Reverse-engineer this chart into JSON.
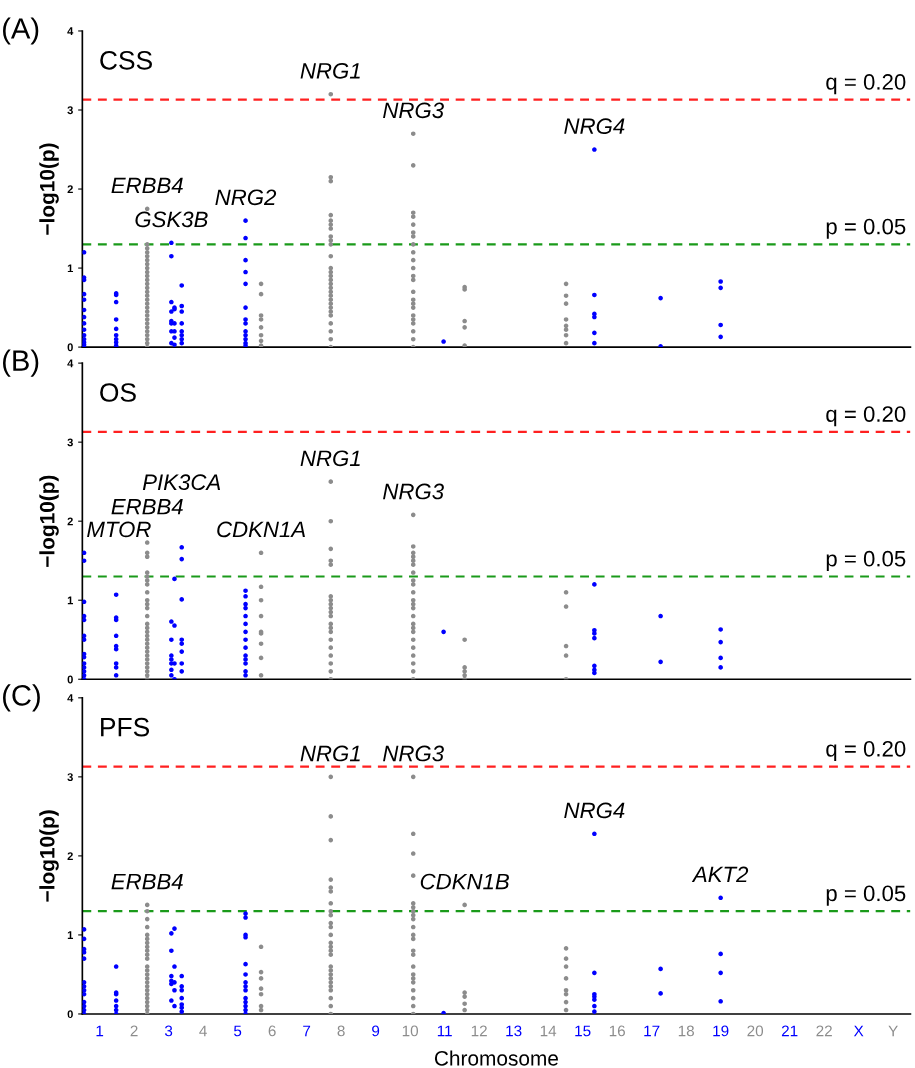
{
  "chart_data": [
    {
      "type": "scatter",
      "title": "(A)",
      "subtitle": "CSS",
      "ylabel": "−log10(p)",
      "xlim": [
        0.5,
        24.5
      ],
      "ylim": [
        0,
        4
      ],
      "yticks": [
        0,
        1,
        2,
        3,
        4
      ],
      "tick_labels": "y",
      "marker": "circle",
      "ref_lines": [
        {
          "axis": "y",
          "value": 3.13,
          "color": "#ff2020",
          "line_style": "dashed"
        },
        {
          "axis": "y",
          "value": 1.3,
          "color": "#1a9a1a",
          "line_style": "dashed"
        }
      ],
      "annotations": [
        {
          "text": "q = 0.20",
          "y": 3.13
        },
        {
          "text": "p = 0.05",
          "y": 1.3
        },
        {
          "text": "ERBB4",
          "x": 2.38,
          "y": 1.75
        },
        {
          "text": "GSK3B",
          "x": 3.08,
          "y": 1.32
        },
        {
          "text": "NRG2",
          "x": 5.23,
          "y": 1.6
        },
        {
          "text": "NRG1",
          "x": 7.7,
          "y": 3.2
        },
        {
          "text": "NRG3",
          "x": 10.09,
          "y": 2.7
        },
        {
          "text": "NRG4",
          "x": 15.34,
          "y": 2.5
        }
      ],
      "series": [
        {
          "color": "#0000ff",
          "x": [
            0.55,
            0.55,
            0.55,
            0.55,
            0.55,
            0.55,
            0.55,
            0.55,
            0.55,
            0.55,
            0.55,
            0.55,
            0.55,
            0.55,
            1.48,
            1.48,
            1.48,
            1.48,
            1.48,
            1.48,
            1.48,
            1.48,
            1.48,
            1.48,
            3.08,
            3.08,
            3.08,
            3.08,
            3.08,
            3.08,
            3.08,
            3.08,
            3.17,
            3.17,
            3.17,
            3.17,
            3.17,
            3.17,
            3.38,
            3.38,
            3.38,
            3.38,
            3.38,
            3.38,
            3.38,
            3.38,
            5.23,
            5.23,
            5.23,
            5.23,
            5.23,
            5.23,
            5.23,
            5.23,
            5.23,
            5.23,
            5.23,
            5.23,
            5.23,
            10.97,
            15.34,
            15.34,
            15.34,
            15.34,
            15.34,
            15.34,
            17.26,
            17.26,
            19.0,
            19.0,
            19.0,
            19.0
          ],
          "values": [
            1.2,
            0.88,
            0.85,
            0.67,
            0.6,
            0.47,
            0.38,
            0.3,
            0.22,
            0.15,
            0.1,
            0.06,
            0.03,
            0.0,
            0.68,
            0.66,
            0.57,
            0.35,
            0.23,
            0.15,
            0.1,
            0.06,
            0.02,
            0.0,
            1.32,
            1.15,
            0.57,
            0.45,
            0.33,
            0.3,
            0.2,
            0.05,
            0.5,
            0.48,
            0.3,
            0.2,
            0.12,
            0.03,
            0.78,
            0.52,
            0.45,
            0.3,
            0.2,
            0.15,
            0.1,
            0.05,
            1.6,
            1.38,
            1.1,
            0.95,
            0.8,
            0.5,
            0.35,
            0.3,
            0.2,
            0.15,
            0.1,
            0.05,
            0.02,
            0.07,
            2.5,
            0.66,
            0.42,
            0.38,
            0.18,
            0.05,
            0.62,
            0.01,
            0.83,
            0.75,
            0.28,
            0.13
          ]
        },
        {
          "color": "#8c8c8c",
          "x": [
            2.38,
            2.38,
            2.38,
            2.38,
            2.38,
            2.38,
            2.38,
            2.38,
            2.38,
            2.38,
            2.38,
            2.38,
            2.38,
            2.38,
            2.38,
            2.38,
            2.38,
            2.38,
            2.38,
            2.38,
            2.38,
            2.38,
            2.38,
            2.38,
            2.38,
            2.38,
            2.38,
            2.38,
            5.68,
            5.68,
            5.68,
            5.68,
            5.68,
            5.68,
            5.68,
            5.68,
            7.7,
            7.7,
            7.7,
            7.7,
            7.7,
            7.7,
            7.7,
            7.7,
            7.7,
            7.7,
            7.7,
            7.7,
            7.7,
            7.7,
            7.7,
            7.7,
            7.7,
            7.7,
            7.7,
            7.7,
            7.7,
            7.7,
            7.7,
            7.7,
            7.7,
            7.7,
            7.7,
            7.7,
            10.09,
            10.09,
            10.09,
            10.09,
            10.09,
            10.09,
            10.09,
            10.09,
            10.09,
            10.09,
            10.09,
            10.09,
            10.09,
            10.09,
            10.09,
            10.09,
            10.09,
            10.09,
            10.09,
            10.09,
            10.09,
            10.09,
            10.09,
            11.58,
            11.58,
            11.58,
            11.58,
            11.58,
            14.52,
            14.52,
            14.52,
            14.52,
            14.52,
            14.52,
            14.52,
            14.52
          ],
          "values": [
            1.75,
            1.3,
            1.25,
            1.2,
            1.15,
            1.1,
            1.05,
            1.0,
            0.95,
            0.9,
            0.85,
            0.8,
            0.75,
            0.7,
            0.65,
            0.6,
            0.55,
            0.5,
            0.45,
            0.4,
            0.35,
            0.3,
            0.25,
            0.2,
            0.15,
            0.1,
            0.05,
            0.0,
            0.8,
            0.67,
            0.4,
            0.35,
            0.25,
            0.15,
            0.08,
            0.02,
            3.2,
            2.15,
            2.1,
            1.67,
            1.6,
            1.55,
            1.5,
            1.4,
            1.35,
            1.3,
            1.15,
            1.0,
            0.95,
            0.9,
            0.85,
            0.8,
            0.75,
            0.7,
            0.65,
            0.6,
            0.55,
            0.5,
            0.45,
            0.4,
            0.3,
            0.2,
            0.1,
            0.0,
            2.7,
            2.3,
            1.7,
            1.65,
            1.55,
            1.45,
            1.4,
            1.3,
            1.2,
            1.1,
            1.0,
            0.9,
            0.85,
            0.7,
            0.6,
            0.55,
            0.5,
            0.4,
            0.35,
            0.3,
            0.2,
            0.1,
            0.0,
            0.76,
            0.73,
            0.33,
            0.25,
            0.02,
            0.8,
            0.65,
            0.55,
            0.35,
            0.27,
            0.22,
            0.15,
            0.05
          ]
        }
      ]
    },
    {
      "type": "scatter",
      "title": "(B)",
      "subtitle": "OS",
      "ylabel": "−log10(p)",
      "xlim": [
        0.5,
        24.5
      ],
      "ylim": [
        0,
        4
      ],
      "yticks": [
        0,
        1,
        2,
        3,
        4
      ],
      "tick_labels": "y",
      "marker": "circle",
      "ref_lines": [
        {
          "axis": "y",
          "value": 3.13,
          "color": "#ff2020",
          "line_style": "dashed"
        },
        {
          "axis": "y",
          "value": 1.3,
          "color": "#1a9a1a",
          "line_style": "dashed"
        }
      ],
      "annotations": [
        {
          "text": "q = 0.20",
          "y": 3.13
        },
        {
          "text": "p = 0.05",
          "y": 1.3
        },
        {
          "text": "MTOR",
          "x": 0.55,
          "y": 1.6
        },
        {
          "text": "ERBB4",
          "x": 2.38,
          "y": 1.73
        },
        {
          "text": "PIK3CA",
          "x": 3.38,
          "y": 1.67
        },
        {
          "text": "CDKN1A",
          "x": 5.68,
          "y": 1.6
        },
        {
          "text": "NRG1",
          "x": 7.7,
          "y": 2.5
        },
        {
          "text": "NRG3",
          "x": 10.09,
          "y": 2.08
        }
      ],
      "series": [
        {
          "color": "#0000ff",
          "x": [
            0.55,
            0.55,
            0.55,
            0.55,
            0.55,
            0.55,
            0.55,
            0.55,
            0.55,
            0.55,
            0.55,
            0.55,
            0.55,
            0.55,
            1.48,
            1.48,
            1.48,
            1.48,
            1.48,
            1.48,
            1.48,
            1.48,
            1.48,
            3.08,
            3.08,
            3.08,
            3.08,
            3.08,
            3.08,
            3.08,
            3.17,
            3.17,
            3.17,
            3.17,
            3.38,
            3.38,
            3.38,
            3.38,
            3.38,
            3.38,
            3.38,
            3.38,
            5.23,
            5.23,
            5.23,
            5.23,
            5.23,
            5.23,
            5.23,
            5.23,
            5.23,
            5.23,
            5.23,
            5.23,
            5.23,
            5.23,
            10.97,
            15.34,
            15.34,
            15.34,
            15.34,
            15.34,
            15.34,
            15.34,
            17.26,
            17.26,
            19.0,
            19.0,
            19.0,
            19.0
          ],
          "values": [
            1.6,
            1.5,
            0.98,
            0.8,
            0.75,
            0.55,
            0.5,
            0.32,
            0.28,
            0.2,
            0.15,
            0.1,
            0.05,
            0.0,
            1.07,
            0.78,
            0.75,
            0.55,
            0.42,
            0.38,
            0.2,
            0.15,
            0.05,
            0.73,
            0.5,
            0.3,
            0.25,
            0.2,
            0.12,
            0.05,
            1.27,
            0.68,
            0.2,
            0.0,
            1.67,
            1.52,
            1.01,
            0.5,
            0.45,
            0.35,
            0.2,
            0.1,
            1.12,
            1.05,
            0.95,
            0.9,
            0.8,
            0.7,
            0.6,
            0.5,
            0.4,
            0.3,
            0.25,
            0.2,
            0.1,
            0.05,
            0.6,
            1.2,
            0.62,
            0.58,
            0.52,
            0.17,
            0.12,
            0.08,
            0.8,
            0.22,
            0.63,
            0.47,
            0.27,
            0.15
          ]
        },
        {
          "color": "#8c8c8c",
          "x": [
            2.38,
            2.38,
            2.38,
            2.38,
            2.38,
            2.38,
            2.38,
            2.38,
            2.38,
            2.38,
            2.38,
            2.38,
            2.38,
            2.38,
            2.38,
            2.38,
            2.38,
            2.38,
            2.38,
            2.38,
            2.38,
            2.38,
            2.38,
            2.38,
            2.38,
            2.38,
            2.38,
            5.68,
            5.68,
            5.68,
            5.68,
            5.68,
            5.68,
            5.68,
            5.68,
            5.68,
            7.7,
            7.7,
            7.7,
            7.7,
            7.7,
            7.7,
            7.7,
            7.7,
            7.7,
            7.7,
            7.7,
            7.7,
            7.7,
            7.7,
            7.7,
            7.7,
            7.7,
            7.7,
            7.7,
            7.7,
            10.09,
            10.09,
            10.09,
            10.09,
            10.09,
            10.09,
            10.09,
            10.09,
            10.09,
            10.09,
            10.09,
            10.09,
            10.09,
            10.09,
            10.09,
            10.09,
            10.09,
            10.09,
            10.09,
            10.09,
            10.09,
            10.09,
            10.09,
            11.58,
            11.58,
            11.58,
            11.58,
            11.58,
            14.52,
            14.52,
            14.52,
            14.52,
            14.52
          ],
          "values": [
            1.73,
            1.6,
            1.55,
            1.35,
            1.3,
            1.25,
            1.2,
            1.1,
            1.0,
            0.95,
            0.9,
            0.8,
            0.7,
            0.65,
            0.6,
            0.55,
            0.5,
            0.45,
            0.4,
            0.35,
            0.3,
            0.25,
            0.2,
            0.15,
            0.1,
            0.05,
            0.0,
            1.6,
            1.17,
            1.0,
            0.8,
            0.6,
            0.58,
            0.45,
            0.27,
            0.05,
            2.5,
            2.0,
            1.65,
            1.5,
            1.45,
            1.05,
            1.0,
            0.95,
            0.9,
            0.85,
            0.8,
            0.7,
            0.65,
            0.6,
            0.5,
            0.4,
            0.3,
            0.2,
            0.1,
            0.0,
            2.08,
            1.68,
            1.6,
            1.55,
            1.5,
            1.45,
            1.35,
            1.25,
            1.2,
            1.1,
            1.0,
            0.95,
            0.9,
            0.8,
            0.7,
            0.65,
            0.6,
            0.5,
            0.4,
            0.3,
            0.2,
            0.1,
            0.0,
            0.5,
            0.15,
            0.1,
            0.05,
            0.0,
            1.1,
            0.92,
            0.42,
            0.3,
            0.0
          ]
        }
      ]
    },
    {
      "type": "scatter",
      "title": "(C)",
      "subtitle": "PFS",
      "ylabel": "−log10(p)",
      "xlabel": "Chromosome",
      "xlim": [
        0.5,
        24.5
      ],
      "ylim": [
        0,
        4
      ],
      "yticks": [
        0,
        1,
        2,
        3,
        4
      ],
      "marker": "circle",
      "xticks": [
        1,
        2,
        3,
        4,
        5,
        6,
        7,
        8,
        9,
        10,
        11,
        12,
        13,
        14,
        15,
        16,
        17,
        18,
        19,
        20,
        21,
        22,
        {
          "value": 23,
          "label": "X"
        },
        {
          "value": 24,
          "label": "Y"
        }
      ],
      "ref_lines": [
        {
          "axis": "y",
          "value": 3.13,
          "color": "#ff2020",
          "line_style": "dashed"
        },
        {
          "axis": "y",
          "value": 1.3,
          "color": "#1a9a1a",
          "line_style": "dashed"
        }
      ],
      "annotations": [
        {
          "text": "q = 0.20",
          "y": 3.13
        },
        {
          "text": "p = 0.05",
          "y": 1.3
        },
        {
          "text": "ERBB4",
          "x": 2.38,
          "y": 1.38
        },
        {
          "text": "NRG1",
          "x": 7.7,
          "y": 3.0
        },
        {
          "text": "NRG3",
          "x": 10.09,
          "y": 3.0
        },
        {
          "text": "CDKN1B",
          "x": 11.58,
          "y": 1.38
        },
        {
          "text": "NRG4",
          "x": 15.34,
          "y": 2.28
        },
        {
          "text": "AKT2",
          "x": 19.0,
          "y": 1.47
        }
      ],
      "series": [
        {
          "color": "#0000ff",
          "x": [
            0.55,
            0.55,
            0.55,
            0.55,
            0.55,
            0.55,
            0.55,
            0.55,
            0.55,
            0.55,
            0.55,
            0.55,
            0.55,
            1.48,
            1.48,
            1.48,
            1.48,
            1.48,
            1.48,
            1.48,
            3.08,
            3.08,
            3.08,
            3.08,
            3.08,
            3.08,
            3.17,
            3.17,
            3.17,
            3.17,
            3.17,
            3.38,
            3.38,
            3.38,
            3.38,
            3.38,
            3.38,
            3.38,
            5.23,
            5.23,
            5.23,
            5.23,
            5.23,
            5.23,
            5.23,
            5.23,
            5.23,
            5.23,
            5.23,
            5.23,
            5.23,
            5.23,
            10.97,
            15.34,
            15.34,
            15.34,
            15.34,
            15.34,
            15.34,
            15.34,
            17.26,
            17.26,
            19.0,
            19.0,
            19.0,
            19.0
          ],
          "values": [
            1.07,
            0.95,
            0.82,
            0.78,
            0.7,
            0.4,
            0.35,
            0.3,
            0.25,
            0.15,
            0.1,
            0.05,
            0.0,
            0.6,
            0.27,
            0.25,
            0.17,
            0.1,
            0.05,
            0.0,
            1.02,
            0.8,
            0.48,
            0.42,
            0.38,
            0.17,
            1.08,
            0.6,
            0.4,
            0.3,
            0.1,
            0.48,
            0.35,
            0.3,
            0.2,
            0.12,
            0.08,
            0.03,
            1.27,
            1.22,
            1.0,
            0.97,
            0.63,
            0.5,
            0.4,
            0.35,
            0.3,
            0.2,
            0.15,
            0.1,
            0.05,
            0.0,
            0.01,
            2.28,
            0.52,
            0.25,
            0.22,
            0.18,
            0.1,
            0.03,
            0.57,
            0.26,
            1.47,
            0.76,
            0.52,
            0.16
          ]
        },
        {
          "color": "#8c8c8c",
          "x": [
            2.38,
            2.38,
            2.38,
            2.38,
            2.38,
            2.38,
            2.38,
            2.38,
            2.38,
            2.38,
            2.38,
            2.38,
            2.38,
            2.38,
            2.38,
            2.38,
            2.38,
            2.38,
            2.38,
            2.38,
            2.38,
            2.38,
            2.38,
            2.38,
            5.68,
            5.68,
            5.68,
            5.68,
            5.68,
            5.68,
            5.68,
            7.7,
            7.7,
            7.7,
            7.7,
            7.7,
            7.7,
            7.7,
            7.7,
            7.7,
            7.7,
            7.7,
            7.7,
            7.7,
            7.7,
            7.7,
            7.7,
            7.7,
            7.7,
            7.7,
            7.7,
            7.7,
            7.7,
            7.7,
            7.7,
            7.7,
            7.7,
            10.09,
            10.09,
            10.09,
            10.09,
            10.09,
            10.09,
            10.09,
            10.09,
            10.09,
            10.09,
            10.09,
            10.09,
            10.09,
            10.09,
            10.09,
            10.09,
            10.09,
            10.09,
            10.09,
            10.09,
            10.09,
            10.09,
            11.58,
            11.58,
            11.58,
            11.58,
            11.58,
            14.52,
            14.52,
            14.52,
            14.52,
            14.52,
            14.52,
            14.52,
            14.52
          ],
          "values": [
            1.38,
            1.3,
            1.2,
            1.1,
            1.0,
            0.95,
            0.9,
            0.85,
            0.8,
            0.75,
            0.7,
            0.6,
            0.55,
            0.5,
            0.45,
            0.4,
            0.35,
            0.3,
            0.25,
            0.2,
            0.15,
            0.1,
            0.05,
            0.0,
            0.85,
            0.53,
            0.45,
            0.32,
            0.25,
            0.1,
            0.05,
            3.0,
            2.5,
            2.2,
            1.7,
            1.6,
            1.55,
            1.4,
            1.3,
            1.25,
            1.15,
            1.1,
            1.0,
            0.9,
            0.85,
            0.8,
            0.75,
            0.6,
            0.55,
            0.5,
            0.45,
            0.4,
            0.35,
            0.3,
            0.2,
            0.1,
            0.0,
            3.0,
            2.28,
            2.03,
            1.75,
            1.4,
            1.35,
            1.3,
            1.25,
            1.2,
            1.1,
            1.0,
            0.95,
            0.8,
            0.75,
            0.6,
            0.5,
            0.45,
            0.4,
            0.3,
            0.2,
            0.1,
            0.0,
            1.38,
            0.27,
            0.22,
            0.13,
            0.05,
            0.83,
            0.7,
            0.6,
            0.45,
            0.3,
            0.25,
            0.15,
            0.05
          ]
        }
      ]
    }
  ]
}
